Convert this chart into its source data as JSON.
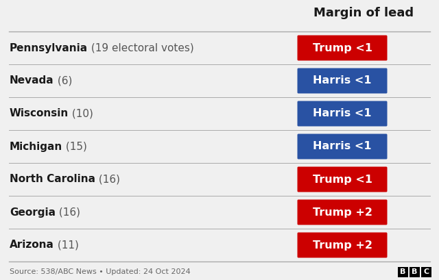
{
  "title": "Margin of lead",
  "background_color": "#f0f0f0",
  "rows": [
    {
      "state": "Pennsylvania",
      "detail": " (19 electoral votes)",
      "label": "Trump <1",
      "color": "#cc0000"
    },
    {
      "state": "Nevada",
      "detail": " (6)",
      "label": "Harris <1",
      "color": "#2952a3"
    },
    {
      "state": "Wisconsin",
      "detail": " (10)",
      "label": "Harris <1",
      "color": "#2952a3"
    },
    {
      "state": "Michigan",
      "detail": " (15)",
      "label": "Harris <1",
      "color": "#2952a3"
    },
    {
      "state": "North Carolina",
      "detail": " (16)",
      "label": "Trump <1",
      "color": "#cc0000"
    },
    {
      "state": "Georgia",
      "detail": " (16)",
      "label": "Trump +2",
      "color": "#cc0000"
    },
    {
      "state": "Arizona",
      "detail": " (11)",
      "label": "Trump +2",
      "color": "#cc0000"
    }
  ],
  "source_text": "Source: 538/ABC News • Updated: 24 Oct 2024",
  "fig_width": 6.4,
  "fig_height": 4.09,
  "dpi": 100,
  "label_color": "#ffffff",
  "state_bold_color": "#1a1a1a",
  "detail_color": "#555555",
  "separator_color": "#aaaaaa",
  "title_color": "#1a1a1a",
  "source_color": "#666666"
}
